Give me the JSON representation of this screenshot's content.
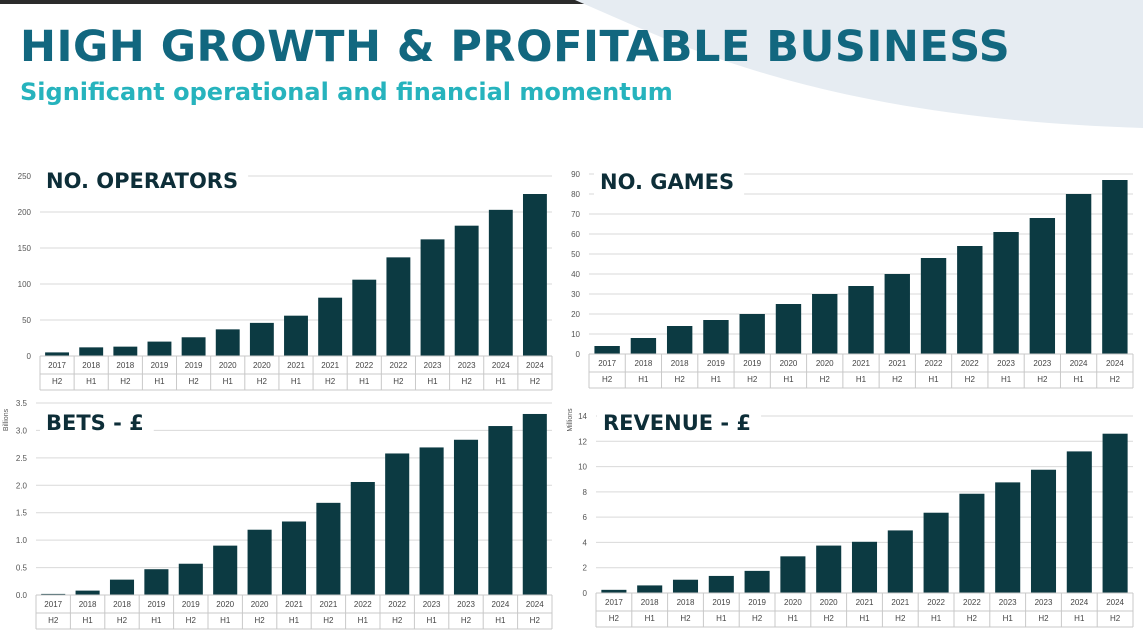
{
  "header": {
    "title": "HIGH GROWTH & PROFITABLE BUSINESS",
    "subtitle": "Significant operational and financial momentum"
  },
  "colors": {
    "title": "#12677f",
    "subtitle": "#26b3bd",
    "bar": "#0c3a42",
    "swoosh": "#e6ecf2"
  },
  "chart_data": [
    {
      "type": "bar",
      "title": "NO. OPERATORS",
      "unit_label": "",
      "categories": [
        [
          "2017",
          "H2"
        ],
        [
          "2018",
          "H1"
        ],
        [
          "2018",
          "H2"
        ],
        [
          "2019",
          "H1"
        ],
        [
          "2019",
          "H2"
        ],
        [
          "2020",
          "H1"
        ],
        [
          "2020",
          "H2"
        ],
        [
          "2021",
          "H1"
        ],
        [
          "2021",
          "H2"
        ],
        [
          "2022",
          "H1"
        ],
        [
          "2022",
          "H2"
        ],
        [
          "2023",
          "H1"
        ],
        [
          "2023",
          "H2"
        ],
        [
          "2024",
          "H1"
        ],
        [
          "2024",
          "H2"
        ]
      ],
      "values": [
        5,
        12,
        13,
        20,
        26,
        37,
        46,
        56,
        81,
        106,
        137,
        162,
        181,
        203,
        225
      ],
      "ylim": [
        0,
        250
      ],
      "yticks": [
        "0",
        "50",
        "100",
        "150",
        "200",
        "250"
      ],
      "grid": true
    },
    {
      "type": "bar",
      "title": "NO. GAMES",
      "unit_label": "",
      "categories": [
        [
          "2017",
          "H2"
        ],
        [
          "2018",
          "H1"
        ],
        [
          "2018",
          "H2"
        ],
        [
          "2019",
          "H1"
        ],
        [
          "2019",
          "H2"
        ],
        [
          "2020",
          "H1"
        ],
        [
          "2020",
          "H2"
        ],
        [
          "2021",
          "H1"
        ],
        [
          "2021",
          "H2"
        ],
        [
          "2022",
          "H1"
        ],
        [
          "2022",
          "H2"
        ],
        [
          "2023",
          "H1"
        ],
        [
          "2023",
          "H2"
        ],
        [
          "2024",
          "H1"
        ],
        [
          "2024",
          "H2"
        ]
      ],
      "values": [
        4,
        8,
        14,
        17,
        20,
        25,
        30,
        34,
        40,
        48,
        54,
        61,
        68,
        80,
        87
      ],
      "ylim": [
        0,
        90
      ],
      "yticks": [
        "0",
        "10",
        "20",
        "30",
        "40",
        "50",
        "60",
        "70",
        "80",
        "90"
      ],
      "grid": true
    },
    {
      "type": "bar",
      "title": "BETS - £",
      "unit_label": "Billions",
      "categories": [
        [
          "2017",
          "H2"
        ],
        [
          "2018",
          "H1"
        ],
        [
          "2018",
          "H2"
        ],
        [
          "2019",
          "H1"
        ],
        [
          "2019",
          "H2"
        ],
        [
          "2020",
          "H1"
        ],
        [
          "2020",
          "H2"
        ],
        [
          "2021",
          "H1"
        ],
        [
          "2021",
          "H2"
        ],
        [
          "2022",
          "H1"
        ],
        [
          "2022",
          "H2"
        ],
        [
          "2023",
          "H1"
        ],
        [
          "2023",
          "H2"
        ],
        [
          "2024",
          "H1"
        ],
        [
          "2024",
          "H2"
        ]
      ],
      "values": [
        0.02,
        0.08,
        0.28,
        0.47,
        0.57,
        0.9,
        1.19,
        1.34,
        1.68,
        2.06,
        2.58,
        2.69,
        2.83,
        3.08,
        3.3
      ],
      "ylim": [
        0,
        3.5
      ],
      "yticks": [
        "0.0",
        "0.5",
        "1.0",
        "1.5",
        "2.0",
        "2.5",
        "3.0",
        "3.5"
      ],
      "grid": true
    },
    {
      "type": "bar",
      "title": "REVENUE - £",
      "unit_label": "Millions",
      "categories": [
        [
          "2017",
          "H2"
        ],
        [
          "2018",
          "H1"
        ],
        [
          "2018",
          "H2"
        ],
        [
          "2019",
          "H1"
        ],
        [
          "2019",
          "H2"
        ],
        [
          "2020",
          "H1"
        ],
        [
          "2020",
          "H2"
        ],
        [
          "2021",
          "H1"
        ],
        [
          "2021",
          "H2"
        ],
        [
          "2022",
          "H1"
        ],
        [
          "2022",
          "H2"
        ],
        [
          "2023",
          "H1"
        ],
        [
          "2023",
          "H2"
        ],
        [
          "2024",
          "H1"
        ],
        [
          "2024",
          "H2"
        ]
      ],
      "values": [
        0.25,
        0.6,
        1.05,
        1.35,
        1.75,
        2.9,
        3.75,
        4.05,
        4.95,
        6.35,
        7.85,
        8.75,
        9.75,
        11.2,
        12.6
      ],
      "ylim": [
        0,
        14
      ],
      "yticks": [
        "0",
        "2",
        "4",
        "6",
        "8",
        "10",
        "12",
        "14"
      ],
      "grid": true
    }
  ]
}
